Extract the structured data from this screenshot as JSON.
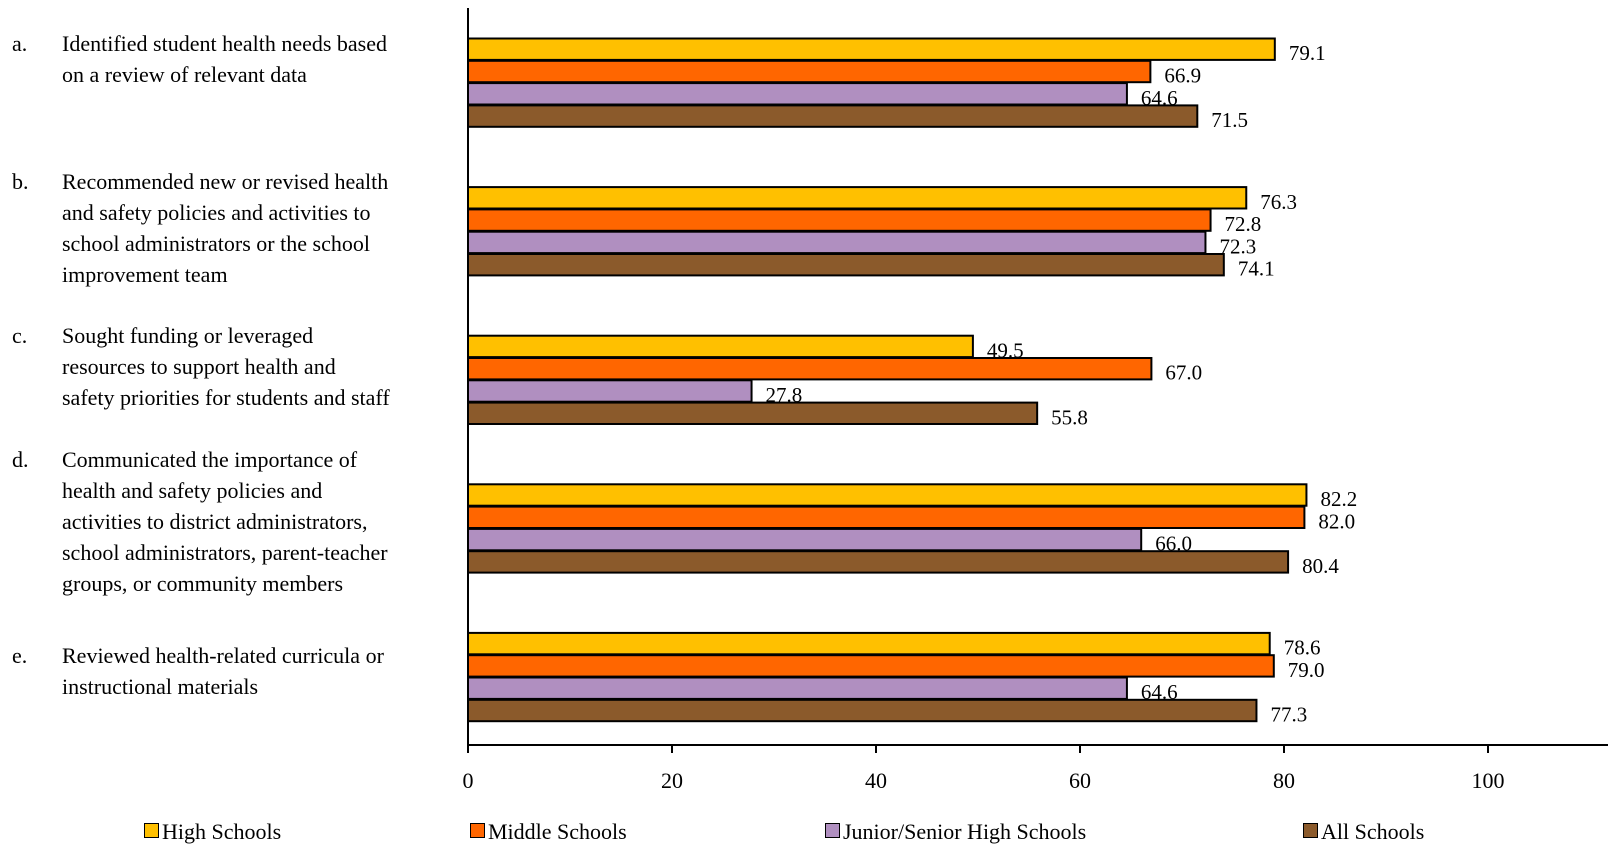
{
  "chart_data": {
    "type": "bar",
    "orientation": "horizontal",
    "categories": [
      {
        "letter": "a.",
        "label": "Identified student health needs based on a review of relevant data",
        "lines": [
          "Identified student health needs based",
          "on a review of relevant data"
        ]
      },
      {
        "letter": "b.",
        "label": "Recommended new or revised health and safety policies and activities to school administrators or the school improvement team",
        "lines": [
          "Recommended new or revised health",
          "and safety policies and activities to",
          "school administrators or the school",
          "improvement team"
        ]
      },
      {
        "letter": "c.",
        "label": "Sought funding or leveraged resources to support health and safety priorities for students and staff",
        "lines": [
          "Sought funding or leveraged",
          "resources to support health and",
          "safety priorities for students and staff"
        ]
      },
      {
        "letter": "d.",
        "label": "Communicated the importance of health and safety policies and activities to district administrators, school administrators, parent-teacher groups, or community members",
        "lines": [
          "Communicated the importance of",
          "health and safety policies and",
          "activities to district administrators,",
          "school administrators, parent-teacher",
          "groups, or community members"
        ]
      },
      {
        "letter": "e.",
        "label": "Reviewed health-related curricula or instructional materials",
        "lines": [
          "Reviewed health-related curricula or",
          "instructional materials"
        ]
      }
    ],
    "series": [
      {
        "name": "High Schools",
        "color": "#FFC000",
        "values": [
          79.1,
          76.3,
          49.5,
          82.2,
          78.6
        ],
        "labels": [
          "79.1",
          "76.3",
          "49.5",
          "82.2",
          "78.6"
        ]
      },
      {
        "name": "Middle Schools",
        "color": "#FF6600",
        "values": [
          66.9,
          72.8,
          67.0,
          82.0,
          79.0
        ],
        "labels": [
          "66.9",
          "72.8",
          "67.0",
          "82.0",
          "79.0"
        ]
      },
      {
        "name": "Junior/Senior High Schools",
        "color": "#B08FC0",
        "values": [
          64.6,
          72.3,
          27.8,
          66.0,
          64.6
        ],
        "labels": [
          "64.6",
          "72.3",
          "27.8",
          "66.0",
          "64.6"
        ]
      },
      {
        "name": "All Schools",
        "color": "#8B5A2B",
        "values": [
          71.5,
          74.1,
          55.8,
          80.4,
          77.3
        ],
        "labels": [
          "71.5",
          "74.1",
          "55.8",
          "80.4",
          "77.3"
        ]
      }
    ],
    "xlim": [
      0,
      100
    ],
    "xticks": [
      0,
      20,
      40,
      60,
      80,
      100
    ],
    "xtick_labels": [
      "0",
      "20",
      "40",
      "60",
      "80",
      "100"
    ],
    "title": "",
    "xlabel": "",
    "ylabel": "",
    "grid": false,
    "legend_position": "bottom"
  }
}
